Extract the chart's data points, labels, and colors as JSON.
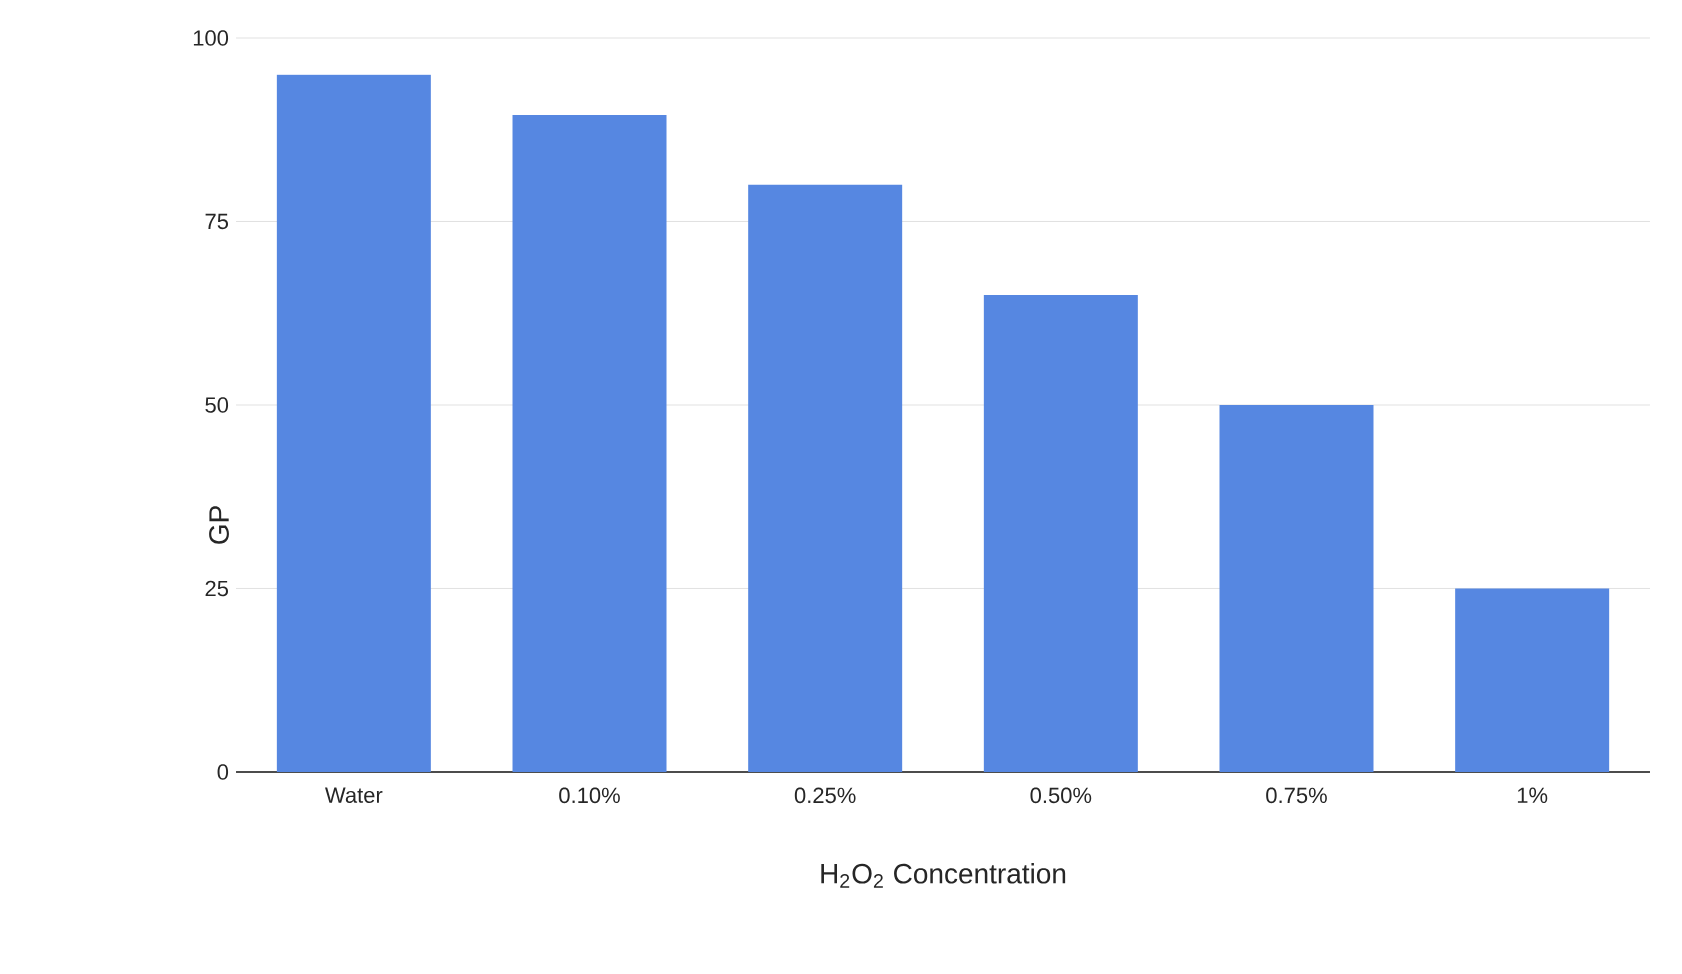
{
  "chart_data": {
    "type": "bar",
    "xlabel": "H$_{2}$O$_{2}$ Concentration",
    "ylabel": "GP",
    "categories": [
      "Water",
      "0.10%",
      "0.25%",
      "0.50%",
      "0.75%",
      "1%"
    ],
    "values": [
      95,
      89.5,
      80,
      65,
      50,
      25
    ],
    "color": "#5687e1",
    "ylim": [
      0,
      100
    ],
    "yticks": [
      0,
      25,
      50,
      75,
      100
    ],
    "grid": "y"
  }
}
